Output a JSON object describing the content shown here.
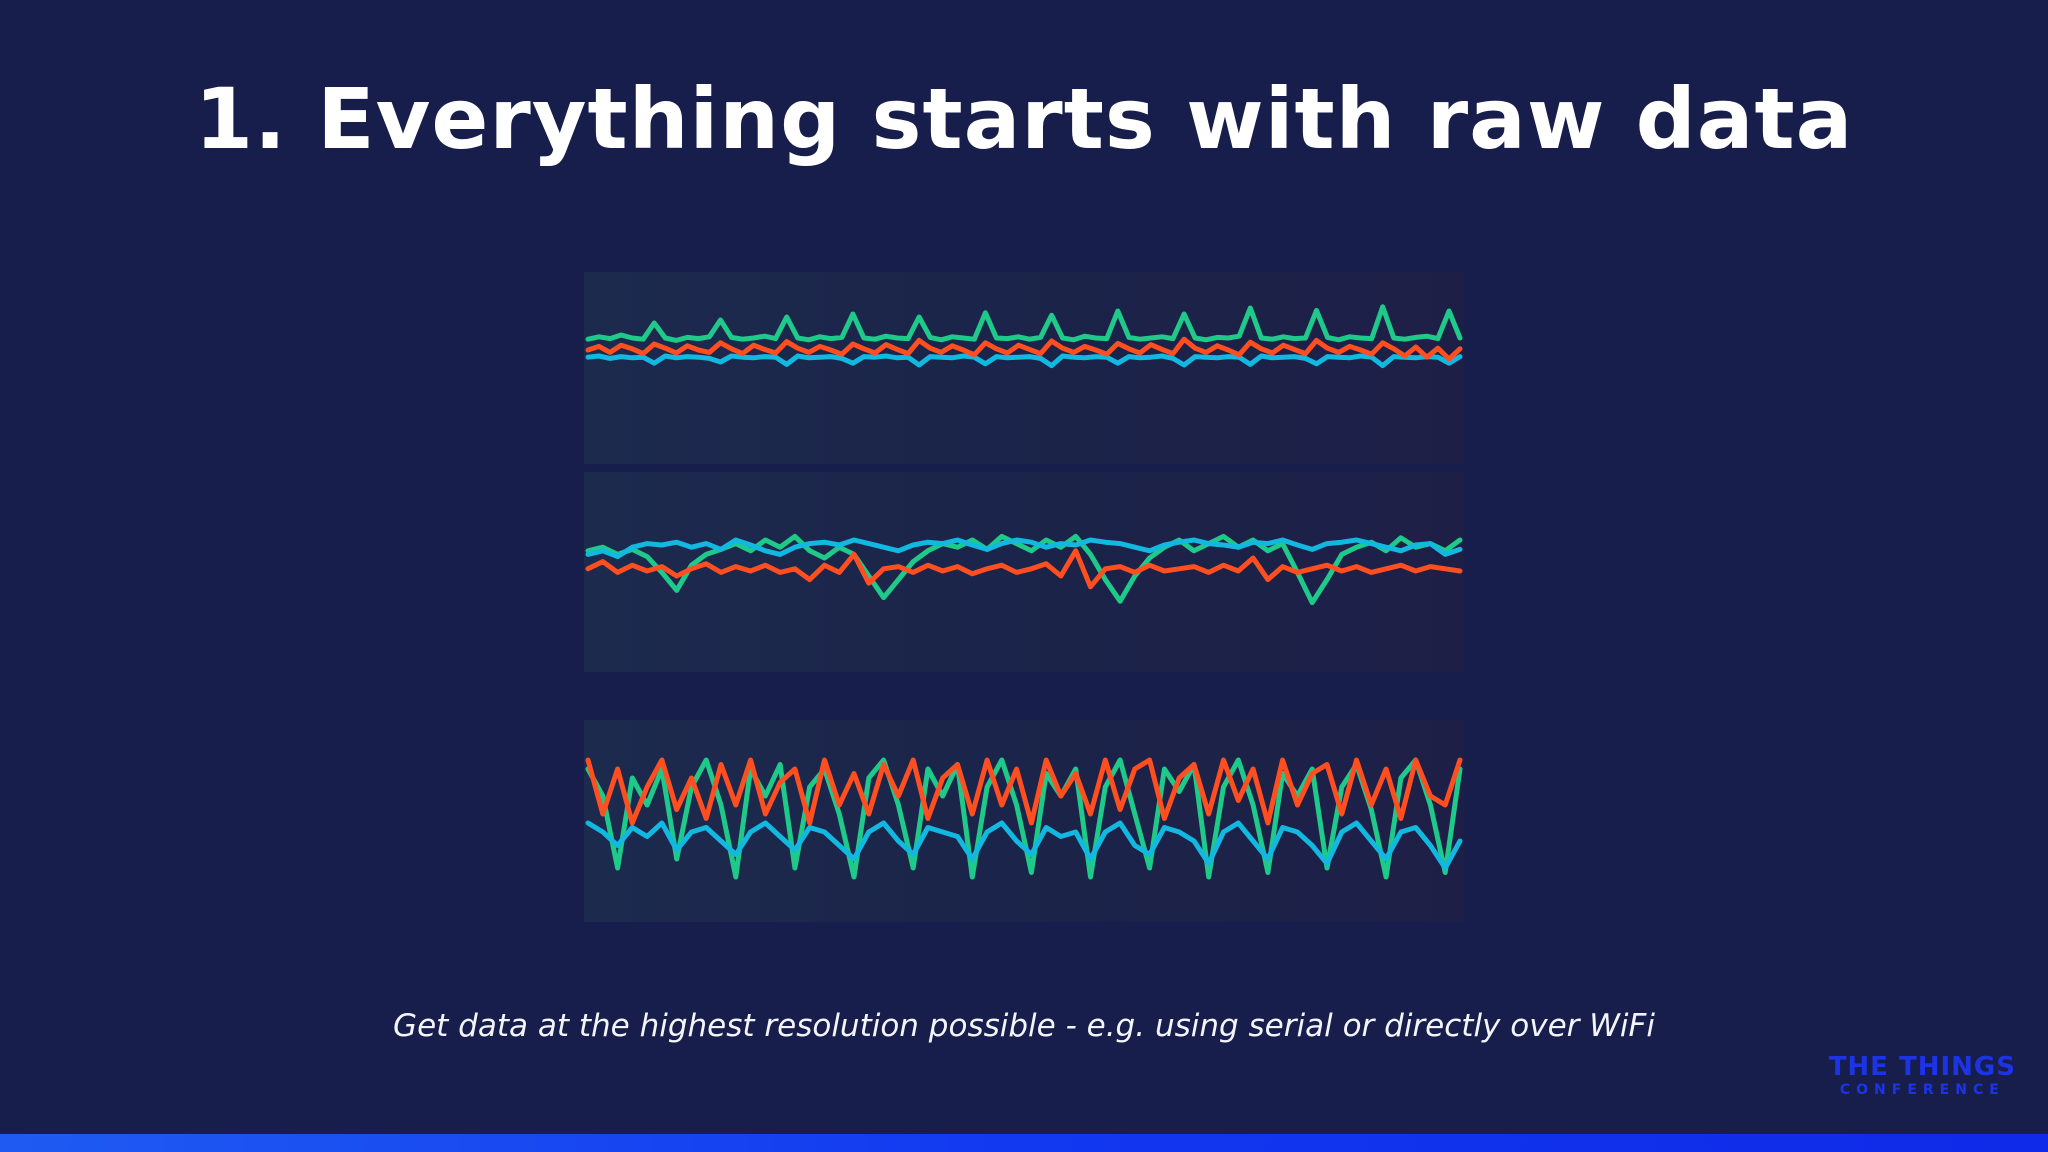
{
  "slide": {
    "title": "1. Everything starts with raw data",
    "caption": "Get data at the highest resolution possible - e.g. using serial or directly over WiFi"
  },
  "logo": {
    "line1": "THE THINGS",
    "line2": "CONFERENCE",
    "color": "#1d34e6"
  },
  "colors": {
    "background": "#171e4c",
    "green": "#1ec98a",
    "cyan": "#12b8e0",
    "orange": "#ff4e1f",
    "bottom_bar": "#1238f0"
  },
  "chart_data": [
    {
      "type": "line",
      "title": "",
      "series": [
        {
          "values": [
            0.18,
            0.22,
            0.19,
            0.25,
            0.2,
            0.18,
            0.45,
            0.2,
            0.16,
            0.21,
            0.19,
            0.22,
            0.5,
            0.21,
            0.18,
            0.2,
            0.23,
            0.19,
            0.55,
            0.2,
            0.17,
            0.22,
            0.19,
            0.21,
            0.6,
            0.2,
            0.18,
            0.23,
            0.2,
            0.19,
            0.55,
            0.21,
            0.17,
            0.22,
            0.2,
            0.18,
            0.62,
            0.2,
            0.19,
            0.22,
            0.18,
            0.21,
            0.58,
            0.2,
            0.17,
            0.23,
            0.2,
            0.19,
            0.65,
            0.21,
            0.18,
            0.2,
            0.22,
            0.19,
            0.6,
            0.2,
            0.17,
            0.21,
            0.2,
            0.23,
            0.7,
            0.2,
            0.18,
            0.22,
            0.19,
            0.2,
            0.66,
            0.21,
            0.17,
            0.22,
            0.2,
            0.19,
            0.72,
            0.2,
            0.18,
            0.21,
            0.23,
            0.19,
            0.65,
            0.2
          ]
        },
        {
          "values": [
            -0.12,
            -0.1,
            -0.14,
            -0.11,
            -0.13,
            -0.12,
            -0.22,
            -0.1,
            -0.13,
            -0.11,
            -0.12,
            -0.14,
            -0.2,
            -0.1,
            -0.12,
            -0.13,
            -0.11,
            -0.12,
            -0.24,
            -0.1,
            -0.13,
            -0.12,
            -0.11,
            -0.14,
            -0.22,
            -0.11,
            -0.12,
            -0.1,
            -0.13,
            -0.12,
            -0.25,
            -0.11,
            -0.12,
            -0.13,
            -0.1,
            -0.12,
            -0.23,
            -0.11,
            -0.13,
            -0.12,
            -0.11,
            -0.14,
            -0.26,
            -0.1,
            -0.12,
            -0.13,
            -0.11,
            -0.12,
            -0.22,
            -0.11,
            -0.13,
            -0.12,
            -0.1,
            -0.14,
            -0.25,
            -0.11,
            -0.12,
            -0.13,
            -0.11,
            -0.12,
            -0.24,
            -0.1,
            -0.13,
            -0.12,
            -0.11,
            -0.14,
            -0.23,
            -0.11,
            -0.12,
            -0.13,
            -0.1,
            -0.12,
            -0.26,
            -0.11,
            -0.12,
            -0.13,
            -0.11,
            -0.12,
            -0.22,
            -0.11
          ]
        },
        {
          "values": [
            0.0,
            0.06,
            -0.04,
            0.08,
            0.02,
            -0.06,
            0.1,
            0.03,
            -0.05,
            0.07,
            0.0,
            -0.04,
            0.12,
            0.02,
            -0.06,
            0.08,
            0.01,
            -0.05,
            0.14,
            0.03,
            -0.04,
            0.06,
            0.0,
            -0.07,
            0.1,
            0.02,
            -0.05,
            0.09,
            0.01,
            -0.06,
            0.16,
            0.03,
            -0.04,
            0.07,
            0.0,
            -0.08,
            0.12,
            0.02,
            -0.05,
            0.08,
            0.01,
            -0.06,
            0.15,
            0.03,
            -0.04,
            0.06,
            0.0,
            -0.07,
            0.11,
            0.02,
            -0.05,
            0.09,
            0.01,
            -0.06,
            0.18,
            0.03,
            -0.04,
            0.07,
            0.0,
            -0.08,
            0.13,
            0.02,
            -0.05,
            0.08,
            0.01,
            -0.06,
            0.16,
            0.03,
            -0.04,
            0.06,
            0.0,
            -0.07,
            0.12,
            0.02,
            -0.1,
            0.05,
            -0.12,
            0.03,
            -0.15,
            0.02
          ]
        }
      ]
    },
    {
      "type": "line",
      "title": "",
      "series": [
        {
          "values": [
            0.1,
            0.15,
            0.05,
            0.12,
            0.02,
            -0.2,
            -0.45,
            -0.1,
            0.05,
            0.12,
            0.2,
            0.1,
            0.25,
            0.15,
            0.3,
            0.1,
            0.0,
            0.15,
            0.05,
            -0.25,
            -0.55,
            -0.3,
            -0.05,
            0.1,
            0.2,
            0.15,
            0.25,
            0.12,
            0.3,
            0.2,
            0.1,
            0.25,
            0.15,
            0.3,
            0.05,
            -0.3,
            -0.6,
            -0.25,
            0.0,
            0.15,
            0.25,
            0.1,
            0.2,
            0.3,
            0.15,
            0.25,
            0.1,
            0.2,
            -0.2,
            -0.62,
            -0.3,
            0.05,
            0.15,
            0.22,
            0.1,
            0.28,
            0.15,
            0.2,
            0.1,
            0.25
          ]
        },
        {
          "values": [
            0.05,
            0.1,
            0.02,
            0.15,
            0.2,
            0.18,
            0.22,
            0.15,
            0.2,
            0.12,
            0.25,
            0.18,
            0.1,
            0.05,
            0.15,
            0.2,
            0.22,
            0.18,
            0.25,
            0.2,
            0.15,
            0.1,
            0.18,
            0.22,
            0.2,
            0.25,
            0.18,
            0.12,
            0.2,
            0.25,
            0.22,
            0.15,
            0.2,
            0.18,
            0.25,
            0.22,
            0.2,
            0.15,
            0.1,
            0.18,
            0.22,
            0.25,
            0.2,
            0.18,
            0.15,
            0.22,
            0.2,
            0.25,
            0.18,
            0.12,
            0.2,
            0.22,
            0.25,
            0.2,
            0.15,
            0.1,
            0.18,
            0.2,
            0.05,
            0.12
          ]
        },
        {
          "values": [
            -0.15,
            -0.05,
            -0.2,
            -0.1,
            -0.18,
            -0.12,
            -0.25,
            -0.15,
            -0.08,
            -0.2,
            -0.12,
            -0.18,
            -0.1,
            -0.2,
            -0.15,
            -0.3,
            -0.1,
            -0.2,
            0.05,
            -0.35,
            -0.15,
            -0.12,
            -0.2,
            -0.1,
            -0.18,
            -0.12,
            -0.22,
            -0.15,
            -0.1,
            -0.2,
            -0.15,
            -0.08,
            -0.25,
            0.1,
            -0.4,
            -0.15,
            -0.12,
            -0.2,
            -0.1,
            -0.18,
            -0.15,
            -0.12,
            -0.2,
            -0.1,
            -0.18,
            0.0,
            -0.3,
            -0.12,
            -0.2,
            -0.15,
            -0.1,
            -0.18,
            -0.12,
            -0.2,
            -0.15,
            -0.1,
            -0.18,
            -0.12,
            -0.15,
            -0.18
          ]
        }
      ]
    },
    {
      "type": "line",
      "title": "",
      "series": [
        {
          "values": [
            0.5,
            0.2,
            -0.6,
            0.4,
            0.1,
            0.5,
            -0.5,
            0.3,
            0.6,
            0.1,
            -0.7,
            0.5,
            0.2,
            0.55,
            -0.6,
            0.3,
            0.5,
            0.0,
            -0.7,
            0.4,
            0.6,
            0.1,
            -0.6,
            0.5,
            0.2,
            0.55,
            -0.7,
            0.3,
            0.6,
            0.1,
            -0.65,
            0.45,
            0.2,
            0.5,
            -0.7,
            0.3,
            0.6,
            0.0,
            -0.6,
            0.5,
            0.25,
            0.55,
            -0.7,
            0.3,
            0.6,
            0.1,
            -0.65,
            0.45,
            0.2,
            0.5,
            -0.6,
            0.3,
            0.55,
            0.05,
            -0.7,
            0.4,
            0.6,
            0.1,
            -0.65,
            0.5
          ]
        },
        {
          "values": [
            -0.1,
            -0.2,
            -0.35,
            -0.15,
            -0.25,
            -0.1,
            -0.4,
            -0.2,
            -0.15,
            -0.3,
            -0.45,
            -0.2,
            -0.1,
            -0.25,
            -0.4,
            -0.15,
            -0.2,
            -0.35,
            -0.5,
            -0.2,
            -0.1,
            -0.3,
            -0.45,
            -0.15,
            -0.2,
            -0.25,
            -0.5,
            -0.2,
            -0.1,
            -0.3,
            -0.45,
            -0.15,
            -0.25,
            -0.2,
            -0.5,
            -0.2,
            -0.1,
            -0.35,
            -0.45,
            -0.15,
            -0.2,
            -0.3,
            -0.55,
            -0.2,
            -0.1,
            -0.3,
            -0.5,
            -0.15,
            -0.2,
            -0.35,
            -0.55,
            -0.2,
            -0.1,
            -0.3,
            -0.5,
            -0.2,
            -0.15,
            -0.35,
            -0.6,
            -0.3
          ]
        },
        {
          "values": [
            0.6,
            0.0,
            0.5,
            -0.1,
            0.3,
            0.6,
            0.05,
            0.4,
            -0.05,
            0.55,
            0.1,
            0.6,
            0.0,
            0.35,
            0.5,
            -0.1,
            0.6,
            0.1,
            0.45,
            0.0,
            0.55,
            0.2,
            0.6,
            -0.05,
            0.4,
            0.55,
            0.0,
            0.6,
            0.1,
            0.5,
            -0.1,
            0.6,
            0.2,
            0.45,
            0.0,
            0.6,
            0.05,
            0.5,
            0.6,
            -0.05,
            0.4,
            0.55,
            0.0,
            0.6,
            0.15,
            0.5,
            -0.1,
            0.6,
            0.1,
            0.45,
            0.55,
            0.0,
            0.6,
            0.1,
            0.5,
            -0.05,
            0.6,
            0.2,
            0.1,
            0.6
          ]
        }
      ]
    }
  ]
}
